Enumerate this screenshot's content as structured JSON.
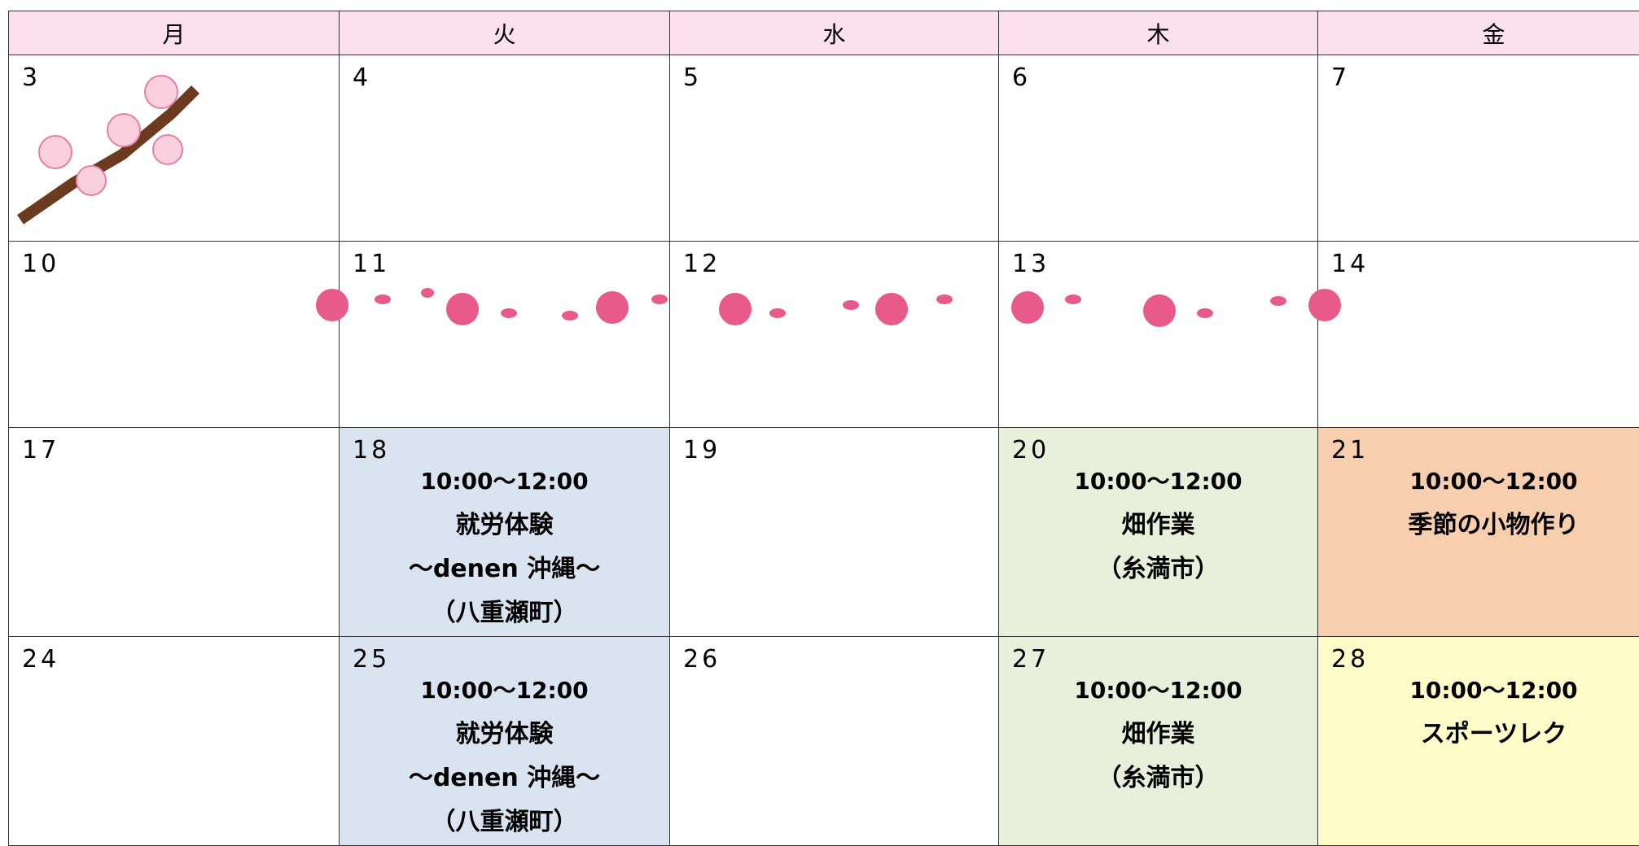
{
  "header": {
    "days": [
      "月",
      "火",
      "水",
      "木",
      "金"
    ]
  },
  "weeks": [
    [
      {
        "date": "3"
      },
      {
        "date": "4"
      },
      {
        "date": "5"
      },
      {
        "date": "6"
      },
      {
        "date": "7"
      }
    ],
    [
      {
        "date": "10"
      },
      {
        "date": "11"
      },
      {
        "date": "12"
      },
      {
        "date": "13"
      },
      {
        "date": "14"
      }
    ],
    [
      {
        "date": "17"
      },
      {
        "date": "18",
        "color": "#dae3f0",
        "time": "10:00～12:00",
        "lines": [
          "就労体験",
          "～denen 沖縄～",
          "（八重瀬町）"
        ]
      },
      {
        "date": "19"
      },
      {
        "date": "20",
        "color": "#e8f0dc",
        "time": "10:00～12:00",
        "lines": [
          "畑作業",
          "（糸満市）"
        ]
      },
      {
        "date": "21",
        "color": "#f8cfae",
        "time": "10:00～12:00",
        "lines": [
          "季節の小物作り"
        ]
      }
    ],
    [
      {
        "date": "24"
      },
      {
        "date": "25",
        "color": "#dae3f0",
        "time": "10:00～12:00",
        "lines": [
          "就労体験",
          "～denen 沖縄～",
          "（八重瀬町）"
        ]
      },
      {
        "date": "26"
      },
      {
        "date": "27",
        "color": "#e8f0dc",
        "time": "10:00～12:00",
        "lines": [
          "畑作業",
          "（糸満市）"
        ]
      },
      {
        "date": "28",
        "color": "#fefcc8",
        "time": "10:00～12:00",
        "lines": [
          "スポーツレク"
        ]
      }
    ]
  ]
}
